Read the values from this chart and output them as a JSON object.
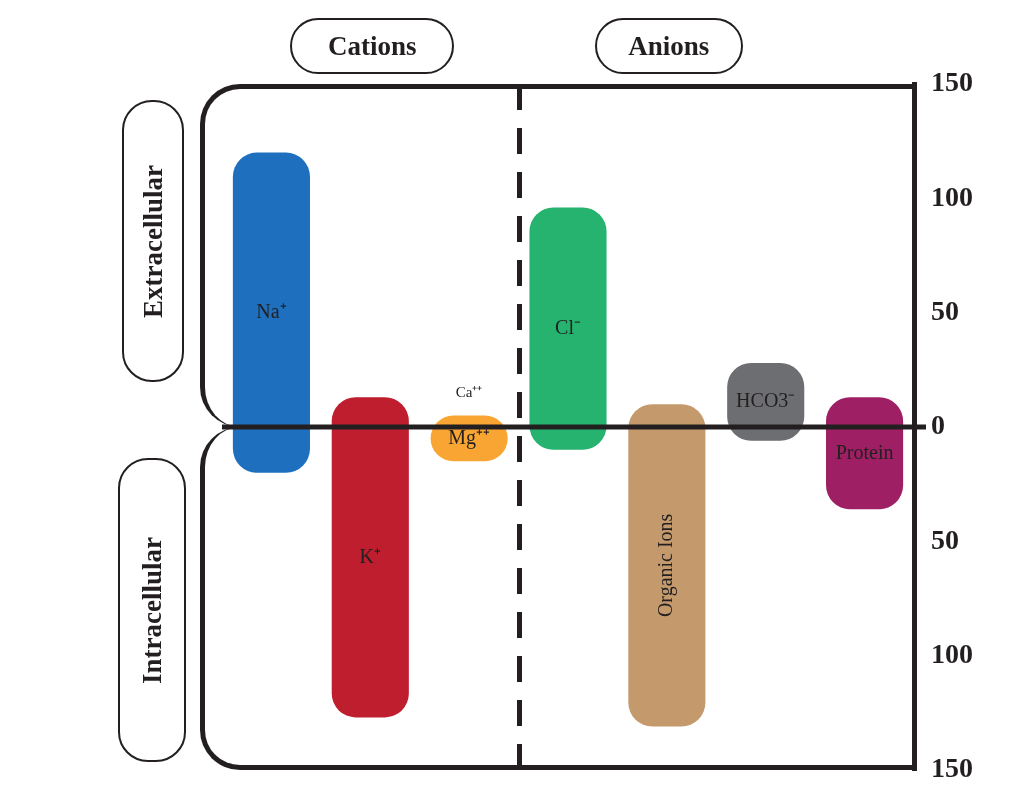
{
  "chart_data": {
    "type": "bar",
    "categories": [
      "Na⁺",
      "K⁺",
      "Mg⁺⁺",
      "Cl⁻",
      "Organic Ions",
      "HCO3⁻",
      "Protein"
    ],
    "values": [
      140,
      140,
      20,
      106,
      141,
      34,
      49
    ],
    "base": [
      -20,
      -127,
      -15,
      -10,
      -131,
      -6,
      -36
    ],
    "colors": [
      "#1f6fbf",
      "#be1e2d",
      "#f9a533",
      "#25b36f",
      "#c49a6c",
      "#6d6e71",
      "#9e1f63"
    ],
    "ylim": [
      -150,
      150
    ],
    "yticks": [
      {
        "value": -150,
        "label": "150"
      },
      {
        "value": -100,
        "label": "100"
      },
      {
        "value": -50,
        "label": "50"
      },
      0,
      50,
      100,
      150
    ],
    "tick_labels": "y",
    "grid": false,
    "legend": false,
    "ref_lines": [
      {
        "axis": "y",
        "value": 0,
        "color": "#231f20"
      }
    ],
    "annotations": [
      "Cations",
      "Anions",
      "Extracellular",
      "Intracellular",
      "Ca⁺⁺"
    ]
  }
}
